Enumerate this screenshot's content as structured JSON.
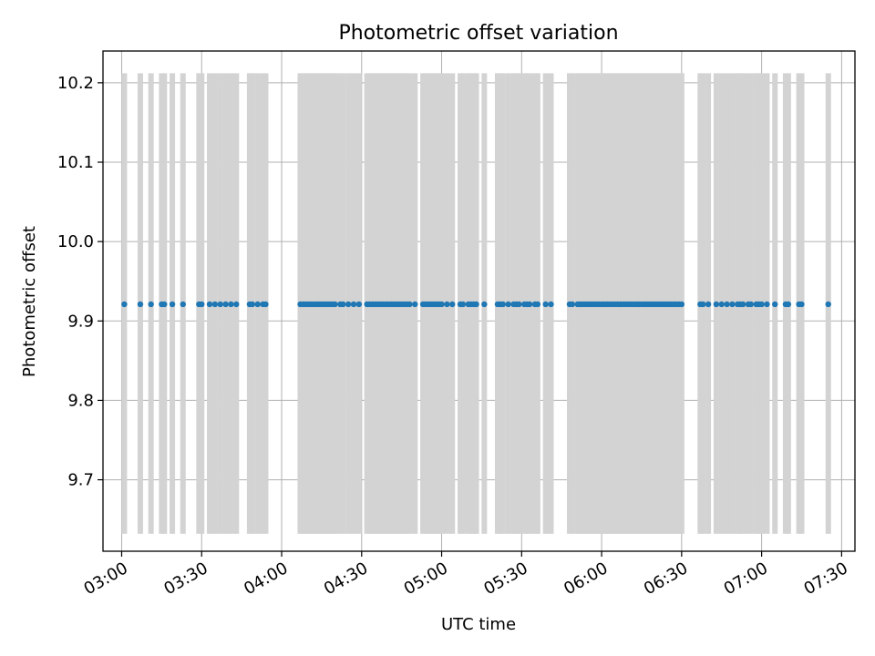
{
  "chart_data": {
    "type": "scatter",
    "title": "Photometric offset variation",
    "xlabel": "UTC time",
    "ylabel": "Photometric offset",
    "xlim": [
      "02:53",
      "07:35"
    ],
    "ylim": [
      9.61,
      10.24
    ],
    "x_ticks": [
      "03:00",
      "03:30",
      "04:00",
      "04:30",
      "05:00",
      "05:30",
      "06:00",
      "06:30",
      "07:00",
      "07:30"
    ],
    "y_ticks": [
      "9.7",
      "9.8",
      "9.9",
      "10.0",
      "10.1",
      "10.2"
    ],
    "grid": true,
    "colors": {
      "points": "#1f77b4",
      "exposure_bars": "#d3d3d3",
      "grid": "#b0b0b0"
    },
    "exposure_bars": {
      "y_range": [
        9.632,
        10.212
      ],
      "x": [
        "03:01",
        "03:07",
        "03:11",
        "03:15",
        "03:16",
        "03:19",
        "03:23",
        "03:29",
        "03:30",
        "03:33",
        "03:35",
        "03:37",
        "03:39",
        "03:41",
        "03:43",
        "03:48",
        "03:49",
        "03:51",
        "03:53",
        "03:54",
        "04:07",
        "04:08",
        "04:09",
        "04:10",
        "04:11",
        "04:12",
        "04:13",
        "04:14",
        "04:15",
        "04:16",
        "04:17",
        "04:18",
        "04:19",
        "04:20",
        "04:22",
        "04:23",
        "04:25",
        "04:27",
        "04:29",
        "04:32",
        "04:33",
        "04:34",
        "04:35",
        "04:36",
        "04:37",
        "04:38",
        "04:39",
        "04:40",
        "04:41",
        "04:42",
        "04:43",
        "04:44",
        "04:45",
        "04:46",
        "04:47",
        "04:48",
        "04:50",
        "04:53",
        "04:54",
        "04:55",
        "04:56",
        "04:57",
        "04:58",
        "04:59",
        "05:00",
        "05:02",
        "05:04",
        "05:07",
        "05:08",
        "05:10",
        "05:11",
        "05:12",
        "05:13",
        "05:16",
        "05:21",
        "05:22",
        "05:23",
        "05:25",
        "05:27",
        "05:28",
        "05:29",
        "05:31",
        "05:32",
        "05:33",
        "05:35",
        "05:36",
        "05:39",
        "05:41",
        "05:48",
        "05:49",
        "05:51",
        "05:52",
        "05:53",
        "05:54",
        "05:55",
        "05:56",
        "05:57",
        "05:58",
        "05:59",
        "06:00",
        "06:01",
        "06:02",
        "06:03",
        "06:04",
        "06:05",
        "06:06",
        "06:07",
        "06:08",
        "06:09",
        "06:10",
        "06:11",
        "06:12",
        "06:13",
        "06:14",
        "06:15",
        "06:16",
        "06:17",
        "06:18",
        "06:19",
        "06:20",
        "06:21",
        "06:22",
        "06:23",
        "06:24",
        "06:25",
        "06:26",
        "06:27",
        "06:28",
        "06:29",
        "06:30",
        "06:37",
        "06:38",
        "06:40",
        "06:43",
        "06:45",
        "06:47",
        "06:49",
        "06:51",
        "06:52",
        "06:53",
        "06:55",
        "06:56",
        "06:58",
        "06:59",
        "07:00",
        "07:02",
        "07:05",
        "07:09",
        "07:10",
        "07:14",
        "07:15",
        "07:25"
      ]
    },
    "series": [
      {
        "y_value": 9.921,
        "x": [
          "03:01",
          "03:07",
          "03:11",
          "03:15",
          "03:16",
          "03:19",
          "03:23",
          "03:29",
          "03:30",
          "03:33",
          "03:35",
          "03:37",
          "03:39",
          "03:41",
          "03:43",
          "03:48",
          "03:49",
          "03:51",
          "03:53",
          "03:54",
          "04:07",
          "04:08",
          "04:09",
          "04:10",
          "04:11",
          "04:12",
          "04:13",
          "04:14",
          "04:15",
          "04:16",
          "04:17",
          "04:18",
          "04:19",
          "04:20",
          "04:22",
          "04:23",
          "04:25",
          "04:27",
          "04:29",
          "04:32",
          "04:33",
          "04:34",
          "04:35",
          "04:36",
          "04:37",
          "04:38",
          "04:39",
          "04:40",
          "04:41",
          "04:42",
          "04:43",
          "04:44",
          "04:45",
          "04:46",
          "04:47",
          "04:48",
          "04:50",
          "04:53",
          "04:54",
          "04:55",
          "04:56",
          "04:57",
          "04:58",
          "04:59",
          "05:00",
          "05:02",
          "05:04",
          "05:07",
          "05:08",
          "05:10",
          "05:11",
          "05:12",
          "05:13",
          "05:16",
          "05:21",
          "05:22",
          "05:23",
          "05:25",
          "05:27",
          "05:28",
          "05:29",
          "05:31",
          "05:32",
          "05:33",
          "05:35",
          "05:36",
          "05:39",
          "05:41",
          "05:48",
          "05:49",
          "05:51",
          "05:52",
          "05:53",
          "05:54",
          "05:55",
          "05:56",
          "05:57",
          "05:58",
          "05:59",
          "06:00",
          "06:01",
          "06:02",
          "06:03",
          "06:04",
          "06:05",
          "06:06",
          "06:07",
          "06:08",
          "06:09",
          "06:10",
          "06:11",
          "06:12",
          "06:13",
          "06:14",
          "06:15",
          "06:16",
          "06:17",
          "06:18",
          "06:19",
          "06:20",
          "06:21",
          "06:22",
          "06:23",
          "06:24",
          "06:25",
          "06:26",
          "06:27",
          "06:28",
          "06:29",
          "06:30",
          "06:37",
          "06:38",
          "06:40",
          "06:43",
          "06:45",
          "06:47",
          "06:49",
          "06:51",
          "06:52",
          "06:53",
          "06:55",
          "06:56",
          "06:58",
          "06:59",
          "07:00",
          "07:02",
          "07:05",
          "07:09",
          "07:10",
          "07:14",
          "07:15",
          "07:25"
        ]
      }
    ]
  }
}
